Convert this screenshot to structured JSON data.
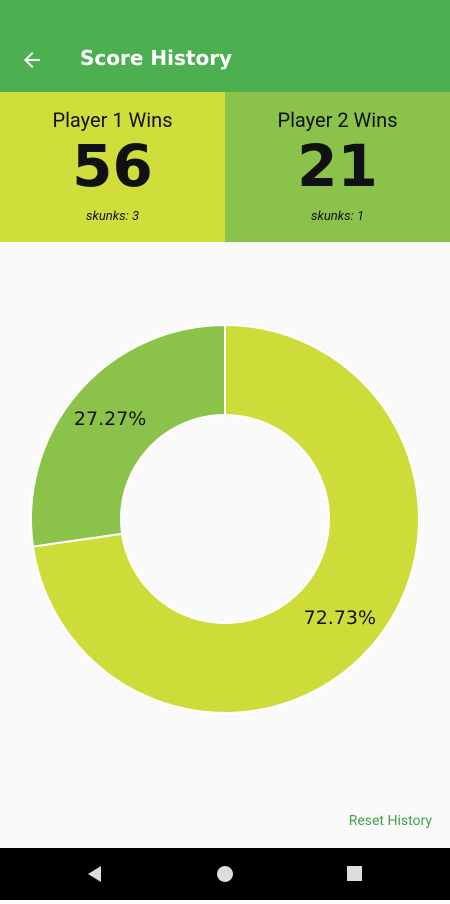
{
  "app_bar": {
    "title": "Score History"
  },
  "players": [
    {
      "label": "Player 1 Wins",
      "wins": 56,
      "skunks": "skunks: 3"
    },
    {
      "label": "Player 2 Wins",
      "wins": 21,
      "skunks": "skunks: 1"
    }
  ],
  "chart_data": {
    "type": "pie",
    "donut": true,
    "values": [
      72.73,
      27.27
    ],
    "value_labels": [
      "72.73%",
      "27.27%"
    ],
    "colors": [
      "#cddc39",
      "#8bc34a"
    ]
  },
  "actions": {
    "reset": "Reset History"
  }
}
